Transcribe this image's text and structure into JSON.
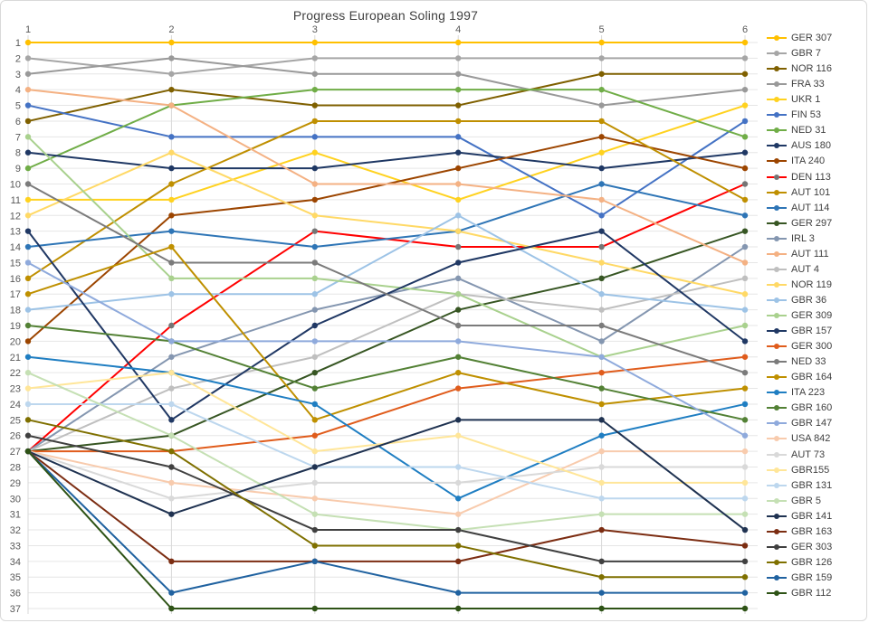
{
  "title": "Progress European Soling 1997",
  "chart_data": {
    "type": "line",
    "subtype": "bump-rank-chart",
    "title": "Progress European Soling 1997",
    "xlabel": "",
    "ylabel": "",
    "x": [
      1,
      2,
      3,
      4,
      5,
      6
    ],
    "x_tick_labels": [
      "1",
      "2",
      "3",
      "4",
      "5",
      "6"
    ],
    "x_axis_position": "top",
    "y_tick_labels": [
      "1",
      "2",
      "3",
      "4",
      "5",
      "6",
      "7",
      "8",
      "9",
      "10",
      "11",
      "12",
      "13",
      "14",
      "15",
      "16",
      "17",
      "18",
      "19",
      "20",
      "21",
      "22",
      "23",
      "24",
      "25",
      "26",
      "27",
      "28",
      "29",
      "30",
      "31",
      "32",
      "33",
      "34",
      "35",
      "36",
      "37"
    ],
    "ylim": [
      1,
      37
    ],
    "y_inverted": true,
    "grid": true,
    "legend_position": "right",
    "note": "values are overall ranking after each of 6 races; legend ordered by final rank",
    "series": [
      {
        "name": "GER 307",
        "color": "#FFC000",
        "ranks": [
          1,
          1,
          1,
          1,
          1,
          1
        ]
      },
      {
        "name": "GBR 7",
        "color": "#A6A6A6",
        "ranks": [
          2,
          3,
          2,
          2,
          2,
          2
        ]
      },
      {
        "name": "NOR 116",
        "color": "#7F6000",
        "ranks": [
          6,
          4,
          5,
          5,
          3,
          3
        ]
      },
      {
        "name": "FRA 33",
        "color": "#999999",
        "ranks": [
          3,
          2,
          3,
          3,
          5,
          4
        ]
      },
      {
        "name": "UKR 1",
        "color": "#FFD21F",
        "ranks": [
          11,
          11,
          8,
          11,
          8,
          5
        ]
      },
      {
        "name": "FIN 53",
        "color": "#4472C4",
        "ranks": [
          5,
          7,
          7,
          7,
          12,
          6
        ]
      },
      {
        "name": "NED 31",
        "color": "#70AD47",
        "ranks": [
          9,
          5,
          4,
          4,
          4,
          7
        ]
      },
      {
        "name": "AUS 180",
        "color": "#1F3864",
        "ranks": [
          8,
          9,
          9,
          8,
          9,
          8
        ]
      },
      {
        "name": "ITA 240",
        "color": "#9C4500",
        "ranks": [
          20,
          12,
          11,
          9,
          7,
          9
        ]
      },
      {
        "name": "DEN 113",
        "color": "#FF0000",
        "marker_color": "#757575",
        "ranks": [
          27,
          19,
          13,
          14,
          14,
          10
        ]
      },
      {
        "name": "AUT 101",
        "color": "#BF8F00",
        "ranks": [
          16,
          10,
          6,
          6,
          6,
          11
        ]
      },
      {
        "name": "AUT 114",
        "color": "#2E75B6",
        "ranks": [
          14,
          13,
          14,
          13,
          10,
          12
        ]
      },
      {
        "name": "GER 297",
        "color": "#375623",
        "ranks": [
          27,
          26,
          22,
          18,
          16,
          13
        ]
      },
      {
        "name": "IRL 3",
        "color": "#8496B0",
        "ranks": [
          27,
          21,
          18,
          16,
          20,
          14
        ]
      },
      {
        "name": "AUT 111",
        "color": "#F4B183",
        "ranks": [
          4,
          5,
          10,
          10,
          11,
          15
        ]
      },
      {
        "name": "AUT 4",
        "color": "#BFBFBF",
        "ranks": [
          27,
          23,
          21,
          17,
          18,
          16
        ]
      },
      {
        "name": "NOR 119",
        "color": "#FFD966",
        "ranks": [
          12,
          8,
          12,
          13,
          15,
          17
        ]
      },
      {
        "name": "GBR 36",
        "color": "#9DC3E6",
        "ranks": [
          18,
          17,
          17,
          12,
          17,
          18
        ]
      },
      {
        "name": "GER 309",
        "color": "#A9D18E",
        "ranks": [
          7,
          16,
          16,
          17,
          21,
          19
        ]
      },
      {
        "name": "GBR 157",
        "color": "#203864",
        "ranks": [
          13,
          25,
          19,
          15,
          13,
          20
        ]
      },
      {
        "name": "GER 300",
        "color": "#E05C1C",
        "ranks": [
          27,
          27,
          26,
          23,
          22,
          21
        ]
      },
      {
        "name": "NED 33",
        "color": "#7B7B7B",
        "ranks": [
          10,
          15,
          15,
          19,
          19,
          22
        ]
      },
      {
        "name": "GBR 164",
        "color": "#BF9000",
        "ranks": [
          17,
          14,
          25,
          22,
          24,
          23
        ]
      },
      {
        "name": "ITA 223",
        "color": "#1F7EC2",
        "ranks": [
          21,
          22,
          24,
          30,
          26,
          24
        ]
      },
      {
        "name": "GBR 160",
        "color": "#538135",
        "ranks": [
          19,
          20,
          23,
          21,
          23,
          25
        ]
      },
      {
        "name": "GBR 147",
        "color": "#8FAADC",
        "ranks": [
          15,
          20,
          20,
          20,
          21,
          26
        ]
      },
      {
        "name": "USA 842",
        "color": "#F8CBAD",
        "ranks": [
          27,
          29,
          30,
          31,
          27,
          27
        ]
      },
      {
        "name": "AUT 73",
        "color": "#D9D9D9",
        "ranks": [
          27,
          30,
          29,
          29,
          28,
          28
        ]
      },
      {
        "name": "GBR155",
        "color": "#FFE699",
        "ranks": [
          23,
          22,
          27,
          26,
          29,
          29
        ]
      },
      {
        "name": "GBR 131",
        "color": "#BDD7EE",
        "ranks": [
          24,
          24,
          28,
          28,
          30,
          30
        ]
      },
      {
        "name": "GBR 5",
        "color": "#C5E0B4",
        "ranks": [
          22,
          26,
          31,
          32,
          31,
          31
        ]
      },
      {
        "name": "GBR 141",
        "color": "#1F3251",
        "ranks": [
          27,
          31,
          28,
          25,
          25,
          32
        ]
      },
      {
        "name": "GBR 163",
        "color": "#7C2D12",
        "ranks": [
          27,
          34,
          34,
          34,
          32,
          33
        ]
      },
      {
        "name": "GER 303",
        "color": "#404040",
        "ranks": [
          26,
          28,
          32,
          32,
          34,
          34
        ]
      },
      {
        "name": "GBR 126",
        "color": "#7F7000",
        "ranks": [
          25,
          27,
          33,
          33,
          35,
          35
        ]
      },
      {
        "name": "GBR 159",
        "color": "#2062A0",
        "ranks": [
          27,
          36,
          34,
          36,
          36,
          36
        ]
      },
      {
        "name": "GBR 112",
        "color": "#2E5316",
        "ranks": [
          27,
          37,
          37,
          37,
          37,
          37
        ]
      }
    ]
  },
  "style": {
    "grid_color_h": "#E6E6E6",
    "grid_color_v": "#D9D9D9",
    "tick_color": "#595959",
    "title_color": "#404040",
    "background": "#FFFFFF"
  }
}
